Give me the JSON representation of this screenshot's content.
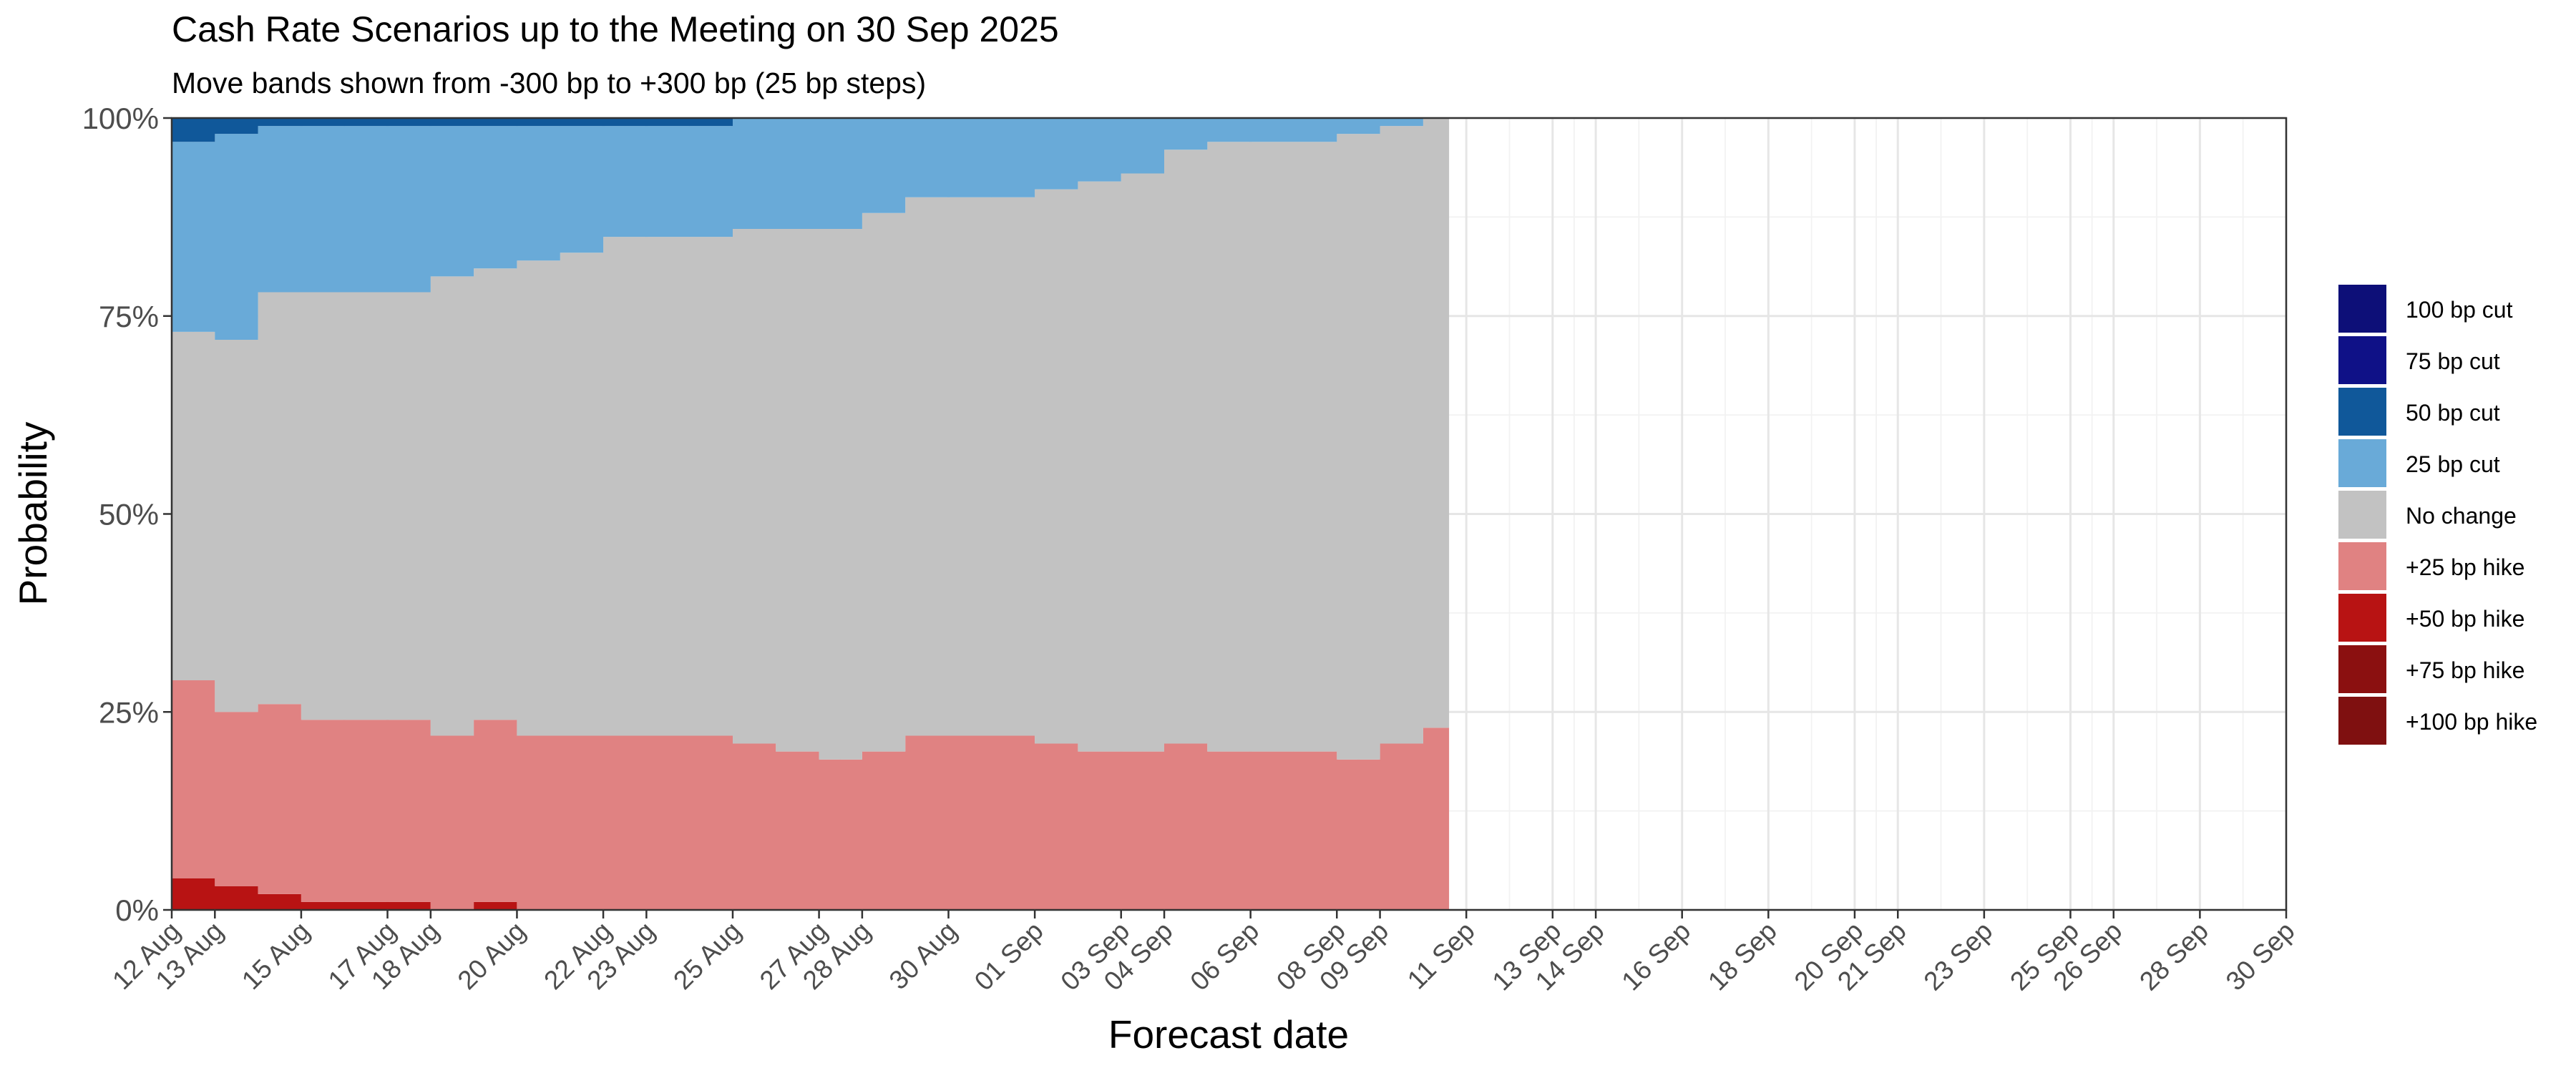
{
  "title": "Cash Rate Scenarios up to the Meeting on 30 Sep 2025",
  "subtitle": "Move bands shown from -300 bp to +300 bp (25 bp steps)",
  "chart_data": {
    "type": "area",
    "stacked": true,
    "xlabel": "Forecast date",
    "ylabel": "Probability",
    "x_tick_labels": [
      "12 Aug",
      "13 Aug",
      "15 Aug",
      "17 Aug",
      "18 Aug",
      "20 Aug",
      "22 Aug",
      "23 Aug",
      "25 Aug",
      "27 Aug",
      "28 Aug",
      "30 Aug",
      "01 Sep",
      "03 Sep",
      "04 Sep",
      "06 Sep",
      "08 Sep",
      "09 Sep",
      "11 Sep",
      "13 Sep",
      "14 Sep",
      "16 Sep",
      "18 Sep",
      "20 Sep",
      "21 Sep",
      "23 Sep",
      "25 Sep",
      "26 Sep",
      "28 Sep",
      "30 Sep"
    ],
    "y_tick_labels": [
      "0%",
      "25%",
      "50%",
      "75%",
      "100%"
    ],
    "ylim": [
      0,
      100
    ],
    "grid": true,
    "legend_position": "right",
    "x": [
      "2025-08-12",
      "2025-08-13",
      "2025-08-14",
      "2025-08-15",
      "2025-08-18",
      "2025-08-19",
      "2025-08-20",
      "2025-08-21",
      "2025-08-22",
      "2025-08-25",
      "2025-08-26",
      "2025-08-27",
      "2025-08-28",
      "2025-08-29",
      "2025-09-01",
      "2025-09-02",
      "2025-09-03",
      "2025-09-04",
      "2025-09-05",
      "2025-09-08",
      "2025-09-09",
      "2025-09-10"
    ],
    "series": [
      {
        "name": "+100 bp hike",
        "color": "#7f1010",
        "values": [
          0,
          0,
          0,
          0,
          0,
          0,
          0,
          0,
          0,
          0,
          0,
          0,
          0,
          0,
          0,
          0,
          0,
          0,
          0,
          0,
          0,
          0
        ]
      },
      {
        "name": "+75 bp hike",
        "color": "#8b1010",
        "values": [
          0,
          0,
          0,
          0,
          0,
          0,
          0,
          0,
          0,
          0,
          0,
          0,
          0,
          0,
          0,
          0,
          0,
          0,
          0,
          0,
          0,
          0
        ]
      },
      {
        "name": "+50 bp hike",
        "color": "#b81313",
        "values": [
          4,
          3,
          2,
          1,
          0,
          1,
          0,
          0,
          0,
          0,
          0,
          0,
          0,
          0,
          0,
          0,
          0,
          0,
          0,
          0,
          0,
          0
        ]
      },
      {
        "name": "+25 bp hike",
        "color": "#e08282",
        "values": [
          25,
          22,
          24,
          23,
          22,
          23,
          22,
          22,
          22,
          21,
          20,
          19,
          20,
          22,
          21,
          20,
          20,
          21,
          20,
          19,
          21,
          23
        ]
      },
      {
        "name": "No change",
        "color": "#c2c2c2",
        "values": [
          44,
          47,
          52,
          54,
          58,
          57,
          60,
          61,
          63,
          65,
          66,
          67,
          68,
          68,
          70,
          72,
          73,
          75,
          77,
          79,
          78,
          77
        ]
      },
      {
        "name": "25 bp cut",
        "color": "#69aad8",
        "values": [
          24,
          26,
          21,
          21,
          19,
          18,
          17,
          16,
          14,
          14,
          14,
          14,
          12,
          10,
          9,
          8,
          7,
          4,
          3,
          2,
          1,
          0
        ]
      },
      {
        "name": "50 bp cut",
        "color": "#10589a",
        "values": [
          3,
          2,
          1,
          1,
          1,
          1,
          1,
          1,
          1,
          0,
          0,
          0,
          0,
          0,
          0,
          0,
          0,
          0,
          0,
          0,
          0,
          0
        ]
      },
      {
        "name": "75 bp cut",
        "color": "#0f1187",
        "values": [
          0,
          0,
          0,
          0,
          0,
          0,
          0,
          0,
          0,
          0,
          0,
          0,
          0,
          0,
          0,
          0,
          0,
          0,
          0,
          0,
          0,
          0
        ]
      },
      {
        "name": "100 bp cut",
        "color": "#0d0f78",
        "values": [
          0,
          0,
          0,
          0,
          0,
          0,
          0,
          0,
          0,
          0,
          0,
          0,
          0,
          0,
          0,
          0,
          0,
          0,
          0,
          0,
          0,
          0
        ]
      }
    ],
    "legend_order": [
      "100 bp cut",
      "75 bp cut",
      "50 bp cut",
      "25 bp cut",
      "No change",
      "+25 bp hike",
      "+50 bp hike",
      "+75 bp hike",
      "+100 bp hike"
    ]
  }
}
